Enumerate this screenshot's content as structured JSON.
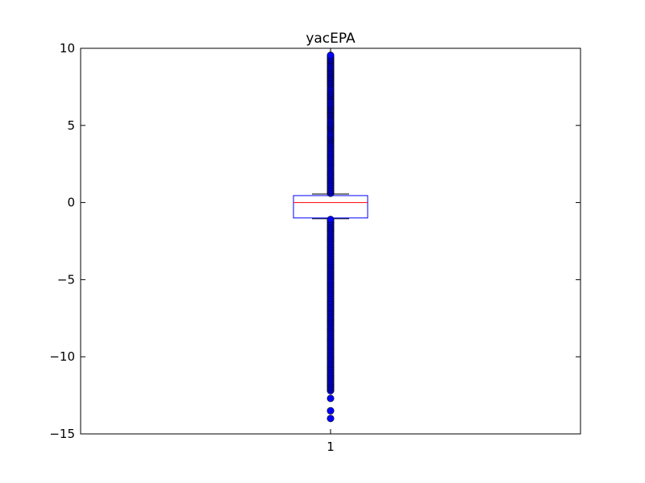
{
  "chart_data": {
    "type": "box",
    "title": "yacEPA",
    "xlabel": "",
    "ylabel": "",
    "categories": [
      "1"
    ],
    "ylim": [
      -15,
      10
    ],
    "yticks": [
      10,
      5,
      0,
      -5,
      -10,
      -15
    ],
    "ytick_labels": [
      "10",
      "5",
      "0",
      "−5",
      "−10",
      "−15"
    ],
    "grid": false,
    "box": {
      "median": 0.0,
      "q1": -1.0,
      "q3": 0.45,
      "whisker_low": -1.05,
      "whisker_high": 0.55,
      "outliers_high": [
        0.6,
        0.9,
        1.2,
        1.5,
        1.8,
        2.1,
        2.4,
        2.7,
        3.0,
        3.3,
        3.6,
        4.0,
        4.4,
        4.8,
        5.2,
        5.6,
        6.0,
        6.4,
        6.8,
        7.2,
        7.6,
        8.0,
        8.4,
        8.8,
        9.1,
        9.35,
        9.55
      ],
      "outliers_low": [
        -1.1,
        -1.4,
        -1.7,
        -2.0,
        -2.3,
        -2.6,
        -2.9,
        -3.2,
        -3.5,
        -3.8,
        -4.1,
        -4.4,
        -4.7,
        -5.0,
        -5.3,
        -5.6,
        -5.9,
        -6.2,
        -6.5,
        -6.8,
        -7.1,
        -7.4,
        -7.7,
        -8.0,
        -8.3,
        -8.6,
        -8.9,
        -9.2,
        -9.5,
        -9.8,
        -10.1,
        -10.4,
        -10.7,
        -11.0,
        -11.3,
        -11.6,
        -11.9,
        -12.2,
        -12.7,
        -13.5,
        -14.0
      ]
    },
    "colors": {
      "box": "#0000ff",
      "median": "#ff0000",
      "outlier_fill": "#0000ff",
      "outlier_edge": "#000000"
    }
  }
}
